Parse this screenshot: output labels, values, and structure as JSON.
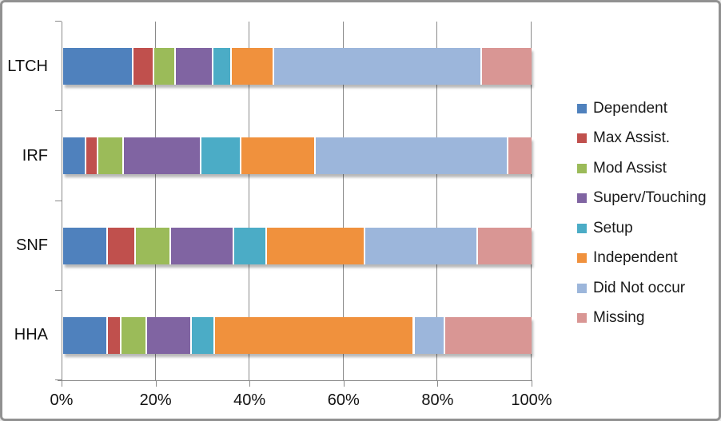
{
  "chart_data": {
    "type": "bar",
    "orientation": "horizontal-stacked",
    "title": "",
    "categories": [
      "LTCH",
      "IRF",
      "SNF",
      "HHA"
    ],
    "series": [
      {
        "name": "Dependent",
        "color": "#4F81BD",
        "values": [
          15,
          5,
          9.5,
          9.5
        ]
      },
      {
        "name": "Max Assist.",
        "color": "#C0504D",
        "values": [
          4.5,
          2.5,
          6,
          3
        ]
      },
      {
        "name": "Mod Assist",
        "color": "#9BBB59",
        "values": [
          4.5,
          5.5,
          7.5,
          5.5
        ]
      },
      {
        "name": "Superv/Touching",
        "color": "#8064A2",
        "values": [
          8,
          16.5,
          13.5,
          9.5
        ]
      },
      {
        "name": "Setup",
        "color": "#4BACC6",
        "values": [
          4,
          8.5,
          7,
          5
        ]
      },
      {
        "name": "Independent",
        "color": "#F0913D",
        "values": [
          9,
          16,
          21,
          42.5
        ]
      },
      {
        "name": "Did Not occur",
        "color": "#9CB6DB",
        "values": [
          44.5,
          41,
          24,
          6.5
        ]
      },
      {
        "name": "Missing",
        "color": "#D99694",
        "values": [
          10.5,
          5,
          11.5,
          18.5
        ]
      }
    ],
    "x_axis": {
      "tick_labels": [
        "0%",
        "20%",
        "40%",
        "60%",
        "80%",
        "100%"
      ],
      "min": 0,
      "max": 100,
      "gridlines": true
    },
    "legend_position": "right",
    "colors": {
      "axis": "#8a8a8a",
      "gridline": "#8a8a8a",
      "frame_border": "#919191",
      "text": "#111111"
    }
  }
}
